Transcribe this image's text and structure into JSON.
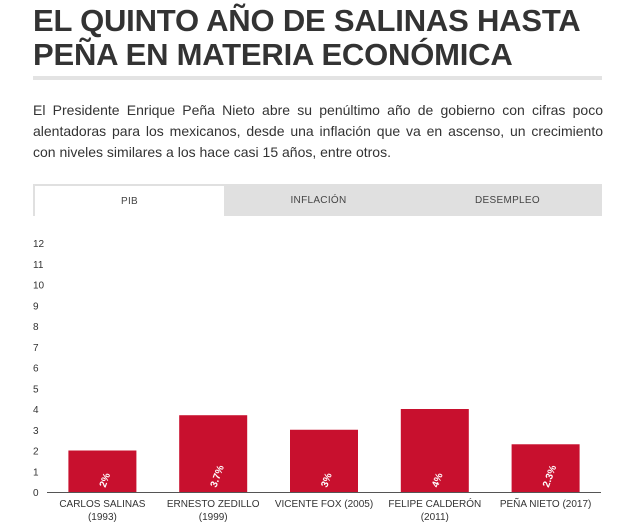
{
  "header": {
    "title": "EL QUINTO AÑO DE SALINAS HASTA PEÑA EN MATERIA ECONÓMICA",
    "intro": "El Presidente Enrique Peña Nieto abre su penúltimo año de gobierno con cifras poco alentadoras para los mexicanos, desde una inflación que va en ascenso, un crecimiento con niveles similares a los hace casi 15 años, entre otros."
  },
  "tabs": [
    {
      "label": "PIB",
      "active": true
    },
    {
      "label": "INFLACIÓN",
      "active": false
    },
    {
      "label": "DESEMPLEO",
      "active": false
    }
  ],
  "chart_data": {
    "type": "bar",
    "categories": [
      [
        "CARLOS SALINAS",
        "(1993)"
      ],
      [
        "ERNESTO ZEDILLO",
        "(1999)"
      ],
      [
        "VICENTE FOX (2005)"
      ],
      [
        "FELIPE CALDERÓN",
        "(2011)"
      ],
      [
        "PEÑA NIETO (2017)"
      ]
    ],
    "values": [
      2,
      3.7,
      3,
      4,
      2.3
    ],
    "data_labels": [
      "2%",
      "3.7%",
      "3%",
      "4%",
      "2.3%"
    ],
    "yticks": [
      0,
      1,
      2,
      3,
      4,
      5,
      6,
      7,
      8,
      9,
      10,
      11,
      12
    ],
    "ylim": [
      0,
      12
    ],
    "bar_color": "#c8102e",
    "grid": false
  }
}
